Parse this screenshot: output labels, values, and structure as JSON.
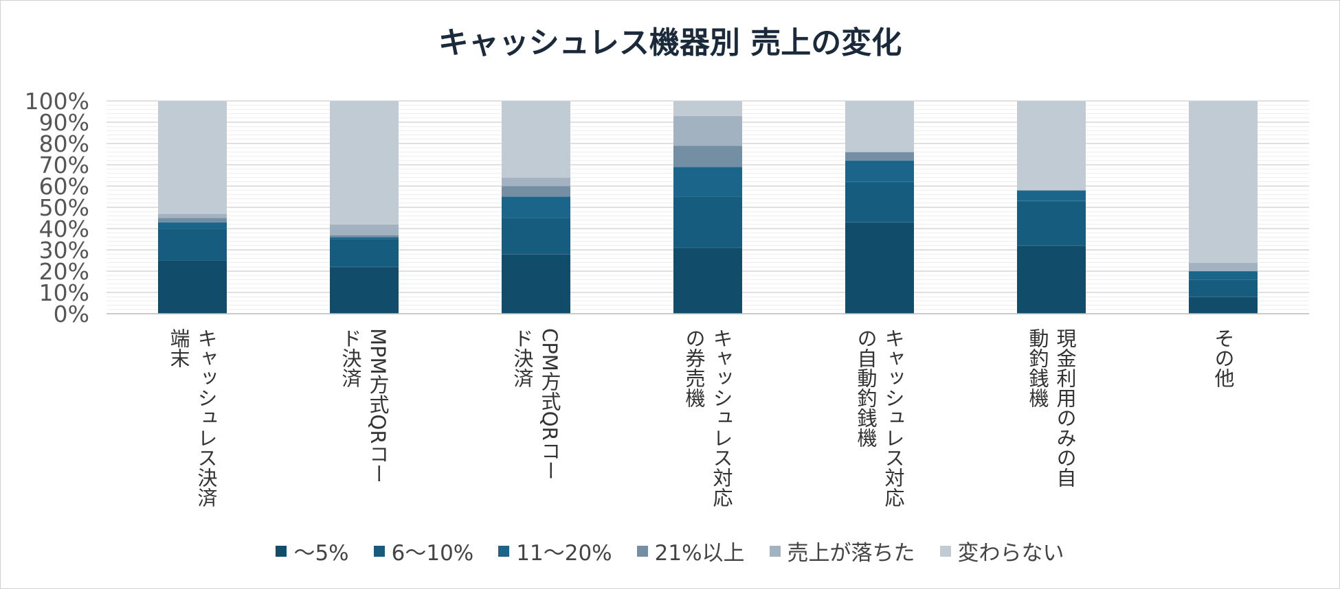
{
  "chart_data": {
    "type": "bar",
    "stacked": true,
    "title": "キャッシュレス機器別 売上の変化",
    "xlabel": "",
    "ylabel": "",
    "ylim": [
      0,
      100
    ],
    "y_ticks": [
      "0%",
      "10%",
      "20%",
      "30%",
      "40%",
      "50%",
      "60%",
      "70%",
      "80%",
      "90%",
      "100%"
    ],
    "grid": true,
    "legend_position": "bottom",
    "categories": [
      [
        "キャッシュレス決済",
        "端末"
      ],
      [
        "MPM方式QRコー",
        "ド決済"
      ],
      [
        "CPM方式QRコー",
        "ド決済"
      ],
      [
        "キャッシュレス対応",
        "の券売機"
      ],
      [
        "キャッシュレス対応",
        "の自動釣銭機"
      ],
      [
        "現金利用のみの自",
        "動釣銭機"
      ],
      [
        "その他"
      ]
    ],
    "series": [
      {
        "name": "～5%",
        "color": "#114d6a",
        "values": [
          25,
          22,
          28,
          31,
          43,
          32,
          8
        ]
      },
      {
        "name": "6～10%",
        "color": "#155c7e",
        "values": [
          15,
          13,
          17,
          24,
          19,
          21,
          8
        ]
      },
      {
        "name": "11～20%",
        "color": "#1a6589",
        "values": [
          3,
          1,
          10,
          14,
          10,
          5,
          4
        ]
      },
      {
        "name": "21%以上",
        "color": "#748ea3",
        "values": [
          2,
          1,
          5,
          10,
          4,
          0,
          0
        ]
      },
      {
        "name": "売上が落ちた",
        "color": "#a2b2c0",
        "values": [
          2,
          5,
          4,
          14,
          0,
          0,
          4
        ]
      },
      {
        "name": "変わらない",
        "color": "#c1cbd4",
        "values": [
          53,
          58,
          36,
          7,
          24,
          42,
          76
        ]
      }
    ]
  }
}
